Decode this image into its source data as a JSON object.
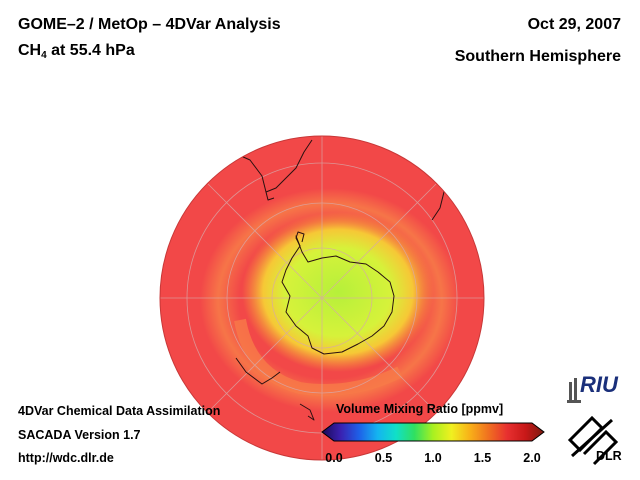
{
  "header": {
    "title_line1": "GOME–2 / MetOp – 4DVar Analysis",
    "species_main": "CH",
    "species_sub": "4",
    "species_rest": " at 55.4 hPa",
    "date": "Oct 29, 2007",
    "region": "Southern Hemisphere"
  },
  "footer": {
    "line1": "4DVar Chemical Data Assimilation",
    "line2": "SACADA Version 1.7",
    "line3": "http://wdc.dlr.de"
  },
  "colorbar": {
    "title": "Volume Mixing Ratio [ppmv]",
    "ticks": [
      "0.0",
      "0.5",
      "1.0",
      "1.5",
      "2.0"
    ],
    "range": [
      0.0,
      2.0
    ],
    "colors": [
      "#1a0a55",
      "#3a20b0",
      "#1e60e8",
      "#14b4f0",
      "#10e0c8",
      "#30e060",
      "#a8f020",
      "#f0f020",
      "#f8b018",
      "#f07020",
      "#e83030",
      "#c81818",
      "#7a1a10"
    ]
  },
  "map": {
    "projection": "orthographic, south pole centered",
    "background_value_ppmv": 1.7,
    "vortex_value_ppmv": 1.2,
    "colors": {
      "background": "#f24848",
      "band": "#f77a48",
      "vortex_edge": "#f6c836",
      "vortex_core": "#b6f03a",
      "coast": "#2a1010",
      "grid": "#d8a8a8"
    }
  },
  "logos": {
    "riu": "RIU",
    "dlr": "DLR"
  }
}
